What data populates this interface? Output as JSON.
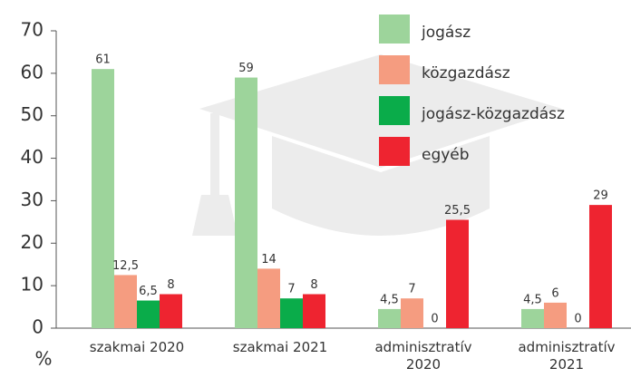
{
  "chart_data": {
    "type": "bar",
    "categories": [
      "szakmai 2020",
      "szakmai 2021",
      "adminisztratív 2020",
      "adminisztratív 2021"
    ],
    "series": [
      {
        "name": "jogász",
        "color": "#9dd49b",
        "values": [
          61,
          59,
          4.5,
          4.5
        ],
        "value_labels": [
          "61",
          "59",
          "4,5",
          "4,5"
        ]
      },
      {
        "name": "közgazdász",
        "color": "#f59c80",
        "values": [
          12.5,
          14,
          7,
          6
        ],
        "value_labels": [
          "12,5",
          "14",
          "7",
          "6"
        ]
      },
      {
        "name": "jogász-közgazdász",
        "color": "#0aac4a",
        "values": [
          6.5,
          7,
          0,
          0
        ],
        "value_labels": [
          "6,5",
          "7",
          "0",
          "0"
        ]
      },
      {
        "name": "egyéb",
        "color": "#ee2430",
        "values": [
          8,
          8,
          25.5,
          29
        ],
        "value_labels": [
          "8",
          "8",
          "25,5",
          "29"
        ]
      }
    ],
    "ylim": [
      0,
      70
    ],
    "yticks": [
      0,
      10,
      20,
      30,
      40,
      50,
      60,
      70
    ],
    "ylabel": "%",
    "legend": "top-right"
  }
}
